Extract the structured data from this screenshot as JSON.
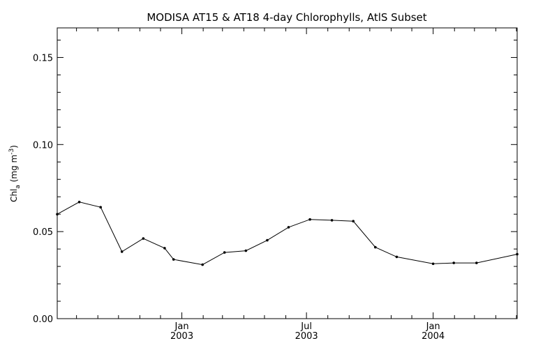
{
  "chart_data": {
    "type": "line",
    "title": "MODISA AT15 & AT18 4-day Chlorophylls, AtlS Subset",
    "xlabel": "",
    "ylabel": {
      "base": "Chl",
      "subscript": "a",
      "units_prefix": "(mg m",
      "superscript": "-3",
      "units_suffix": ")"
    },
    "ylim": [
      0.0,
      0.167
    ],
    "xlim": [
      "2002-07-04",
      "2004-05-02"
    ],
    "y_ticks": [
      {
        "value": 0.0,
        "label": "0.00"
      },
      {
        "value": 0.05,
        "label": "0.05"
      },
      {
        "value": 0.1,
        "label": "0.10"
      },
      {
        "value": 0.15,
        "label": "0.15"
      }
    ],
    "x_ticks": [
      {
        "date": "2003-01-01",
        "label": "Jan",
        "sublabel": "2003"
      },
      {
        "date": "2003-07-01",
        "label": "Jul",
        "sublabel": "2003"
      },
      {
        "date": "2004-01-01",
        "label": "Jan",
        "sublabel": "2004"
      }
    ],
    "grid": false,
    "series": [
      {
        "x": [
          "2002-07-04",
          "2002-08-05",
          "2002-09-05",
          "2002-10-06",
          "2002-11-06",
          "2002-12-07",
          "2002-12-20",
          "2003-01-31",
          "2003-03-04",
          "2003-04-04",
          "2003-05-05",
          "2003-06-05",
          "2003-07-06",
          "2003-08-07",
          "2003-09-07",
          "2003-10-09",
          "2003-11-09",
          "2004-01-01",
          "2004-01-31",
          "2004-03-04",
          "2004-05-02"
        ],
        "y": [
          0.06,
          0.067,
          0.064,
          0.0385,
          0.046,
          0.0405,
          0.034,
          0.031,
          0.038,
          0.039,
          0.045,
          0.0525,
          0.057,
          0.0565,
          0.056,
          0.041,
          0.0355,
          0.0315,
          0.032,
          0.032,
          0.037
        ]
      }
    ]
  }
}
